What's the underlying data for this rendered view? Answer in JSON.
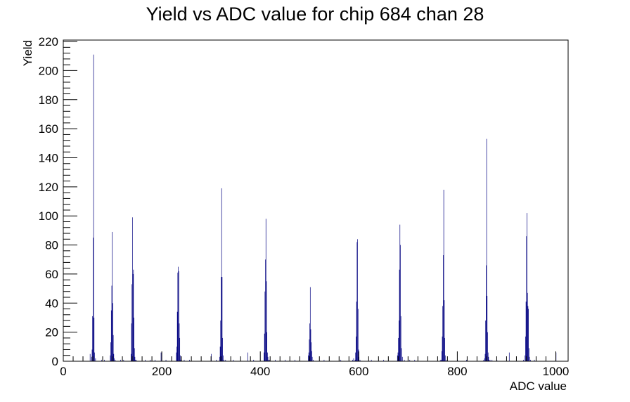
{
  "chart_data": {
    "type": "bar",
    "title": "Yield vs ADC value for chip 684 chan 28",
    "xlabel": "ADC value",
    "ylabel": "Yield",
    "xlim": [
      0,
      1025
    ],
    "ylim": [
      0,
      221
    ],
    "x_ticks": [
      "0",
      "200",
      "400",
      "600",
      "800",
      "1000"
    ],
    "y_ticks": [
      "0",
      "20",
      "40",
      "60",
      "80",
      "100",
      "120",
      "140",
      "160",
      "180",
      "200",
      "220"
    ],
    "grid": false,
    "legend": "none",
    "color": "#000080",
    "series": [
      {
        "x": [
          54,
          57,
          58,
          59,
          60,
          61,
          62,
          63,
          65,
          77,
          83,
          95,
          96,
          97,
          98,
          99,
          100,
          101,
          102,
          103,
          105,
          116,
          122,
          137,
          138,
          139,
          140,
          141,
          142,
          143,
          144,
          145,
          146,
          148,
          166,
          176,
          186,
          198,
          208,
          229,
          230,
          231,
          232,
          233,
          234,
          235,
          236,
          237,
          238,
          245,
          256,
          300,
          310,
          317,
          318,
          319,
          320,
          321,
          322,
          323,
          324,
          326,
          329,
          345,
          374,
          386,
          407,
          408,
          409,
          410,
          411,
          412,
          413,
          414,
          415,
          416,
          418,
          430,
          450,
          470,
          497,
          498,
          499,
          500,
          501,
          502,
          503,
          504,
          505,
          507,
          529,
          563,
          587,
          589,
          592,
          593,
          594,
          595,
          596,
          597,
          598,
          599,
          600,
          602,
          625,
          650,
          678,
          679,
          680,
          681,
          682,
          683,
          684,
          685,
          686,
          688,
          692,
          703,
          713,
          765,
          767,
          768,
          769,
          770,
          771,
          772,
          773,
          774,
          775,
          777,
          800,
          818,
          853,
          855,
          856,
          857,
          858,
          859,
          860,
          861,
          862,
          863,
          864,
          866,
          870,
          880,
          905,
          934,
          937,
          938,
          939,
          940,
          941,
          942,
          943,
          944,
          945,
          946,
          948,
          956,
          1000
        ],
        "values": [
          5,
          3,
          8,
          31,
          85,
          211,
          30,
          6,
          2,
          1,
          1,
          4,
          13,
          35,
          52,
          89,
          40,
          18,
          5,
          2,
          1,
          1,
          1,
          5,
          26,
          53,
          99,
          60,
          63,
          30,
          9,
          3,
          1,
          1,
          1,
          1,
          1,
          6,
          1,
          6,
          10,
          34,
          61,
          65,
          62,
          26,
          16,
          4,
          1,
          1,
          1,
          5,
          1,
          3,
          10,
          28,
          58,
          119,
          58,
          16,
          4,
          1,
          1,
          1,
          6,
          1,
          6,
          19,
          48,
          70,
          98,
          55,
          20,
          6,
          3,
          1,
          1,
          1,
          1,
          1,
          4,
          6,
          15,
          26,
          51,
          22,
          13,
          7,
          3,
          1,
          1,
          1,
          1,
          2,
          1,
          6,
          17,
          41,
          82,
          84,
          36,
          8,
          3,
          1,
          1,
          1,
          4,
          6,
          16,
          28,
          63,
          94,
          80,
          31,
          9,
          3,
          1,
          1,
          1,
          1,
          1,
          7,
          17,
          38,
          73,
          118,
          42,
          16,
          4,
          1,
          1,
          1,
          1,
          2,
          5,
          28,
          66,
          153,
          45,
          20,
          6,
          3,
          1,
          1,
          1,
          1,
          6,
          1,
          4,
          17,
          41,
          86,
          102,
          47,
          38,
          36,
          9,
          3,
          1,
          1,
          6
        ]
      }
    ]
  }
}
